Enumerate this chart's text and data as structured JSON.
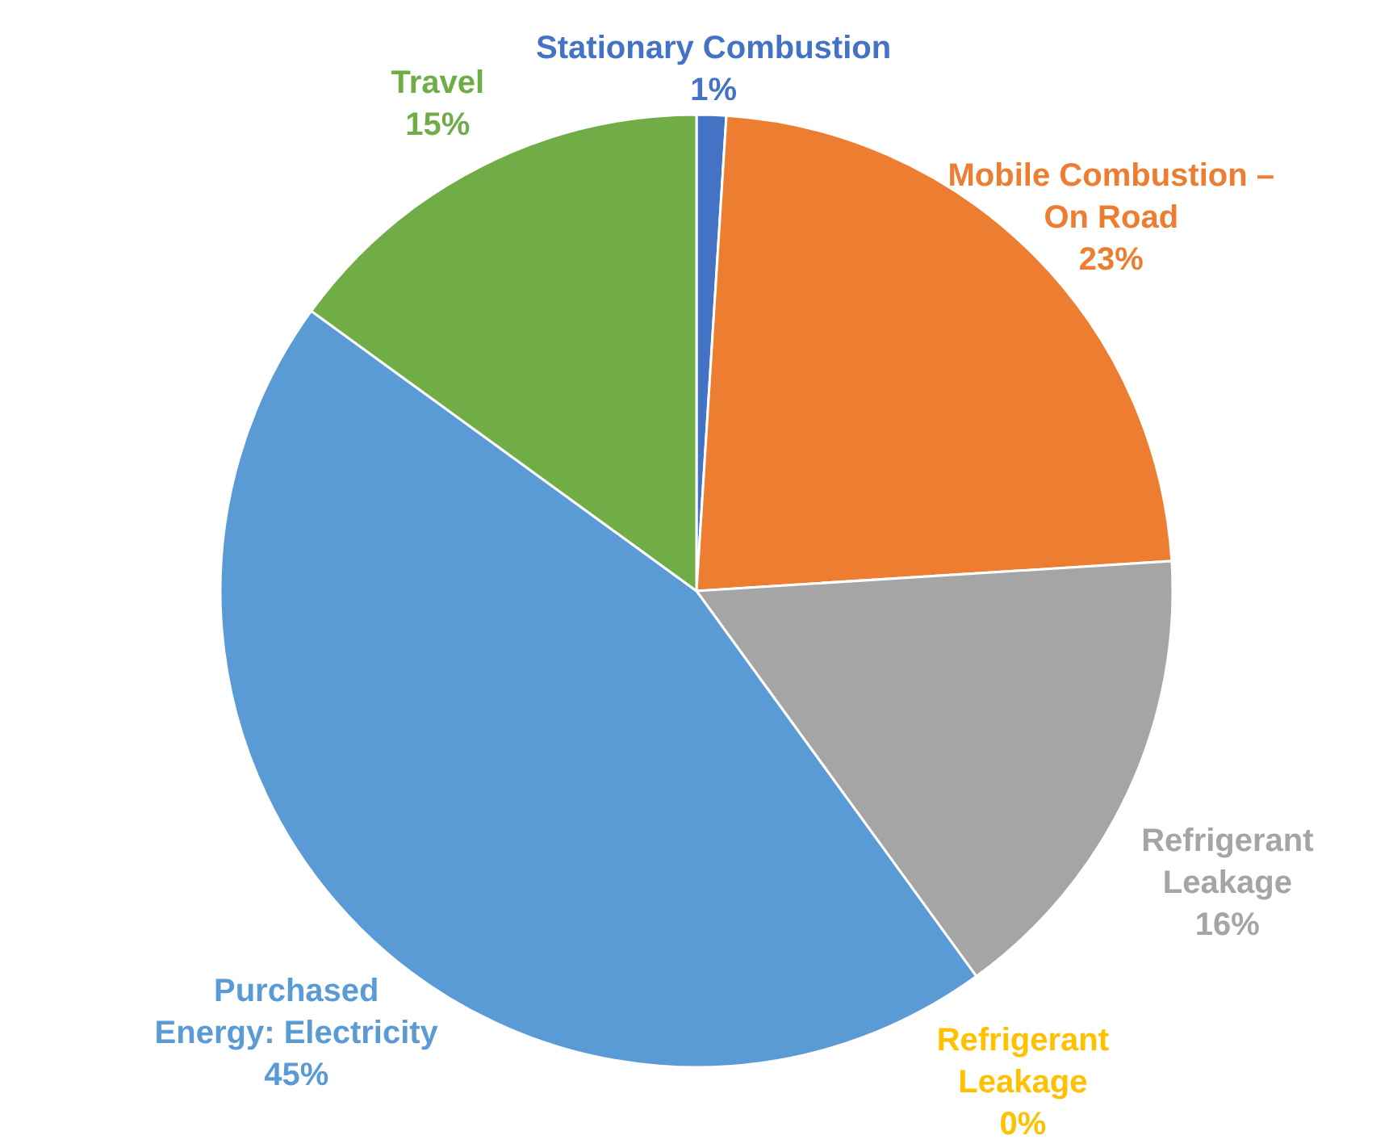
{
  "chart_data": {
    "type": "pie",
    "categories": [
      "Stationary Combustion",
      "Mobile Combustion –\nOn Road",
      "Refrigerant\nLeakage",
      "Refrigerant\nLeakage",
      "Purchased\nEnergy: Electricity",
      "Travel"
    ],
    "values": [
      1,
      23,
      16,
      0,
      45,
      15
    ],
    "colors": [
      "#4472c4",
      "#ed7d31",
      "#a5a5a5",
      "#ffc000",
      "#5b9bd5",
      "#70ad47"
    ],
    "value_labels": [
      "1%",
      "23%",
      "16%",
      "0%",
      "45%",
      "15%"
    ]
  }
}
